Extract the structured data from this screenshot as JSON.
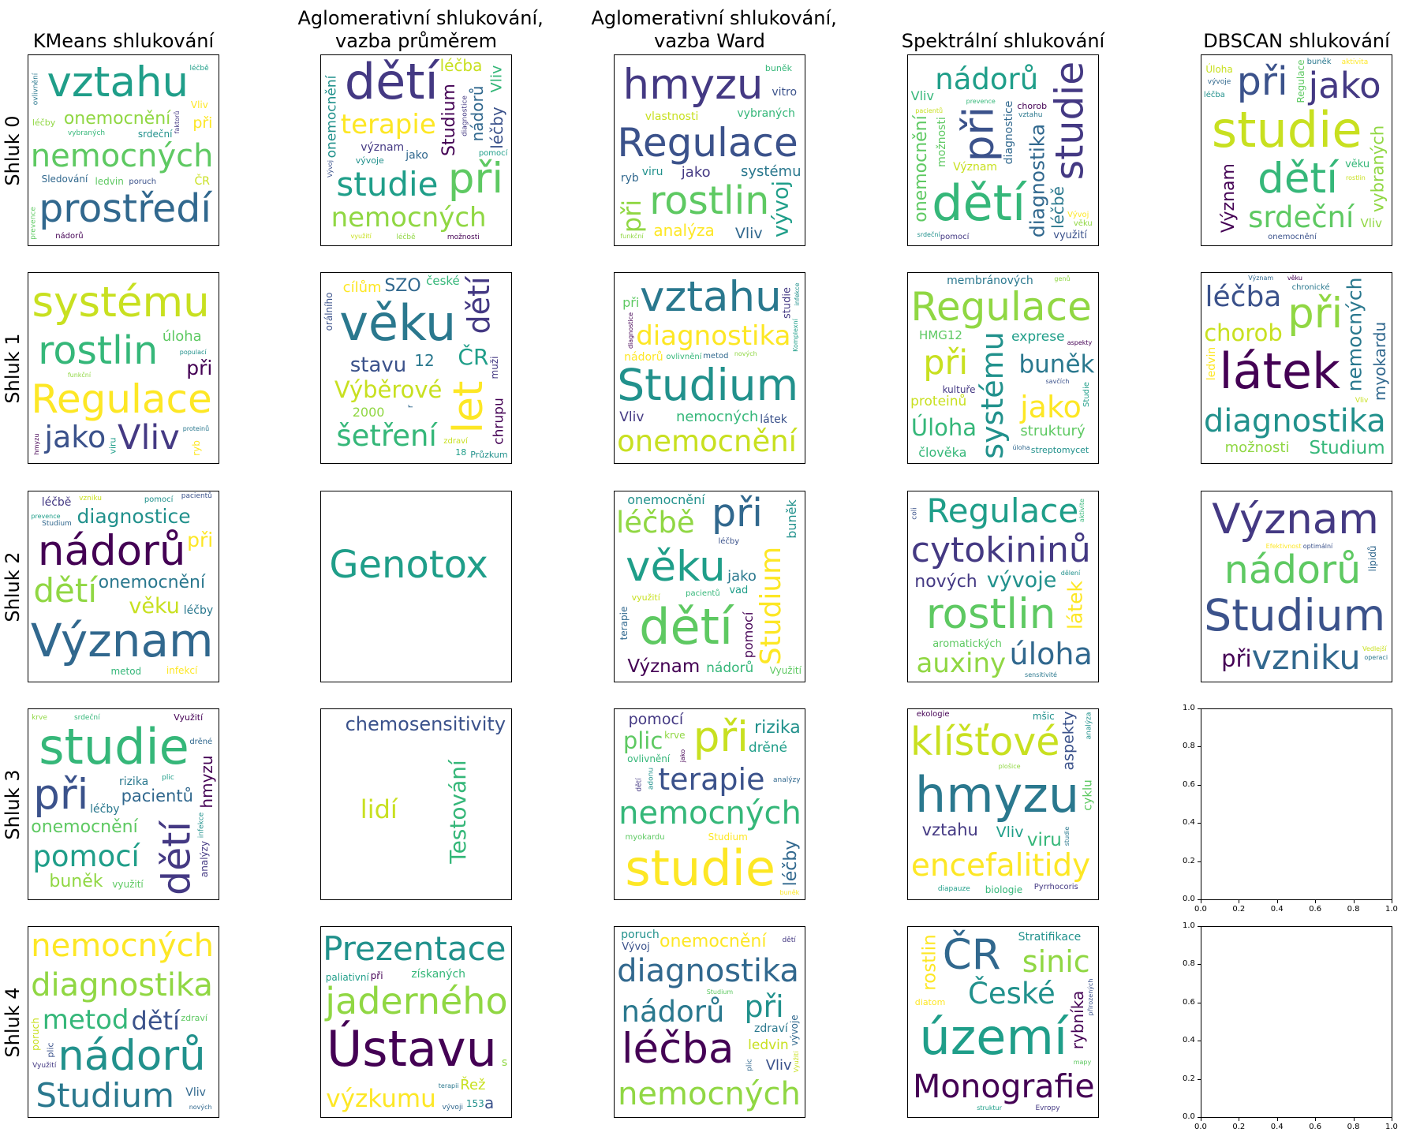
{
  "columns": [
    {
      "title": "KMeans shlukování"
    },
    {
      "title": "Aglomerativní shlukování,\nvazba průměrem"
    },
    {
      "title": "Aglomerativní shlukování,\nvazba Ward"
    },
    {
      "title": "Spektrální shlukování"
    },
    {
      "title": "DBSCAN shlukování"
    }
  ],
  "rows": [
    {
      "label": "Shluk 0"
    },
    {
      "label": "Shluk 1"
    },
    {
      "label": "Shluk 2"
    },
    {
      "label": "Shluk 3"
    },
    {
      "label": "Shluk 4"
    }
  ],
  "empty_axis_ticks": [
    "0.0",
    "0.2",
    "0.4",
    "0.6",
    "0.8",
    "1.0"
  ],
  "palette": [
    "#440154",
    "#3b528b",
    "#21918c",
    "#5ec962",
    "#fde725",
    "#31688e",
    "#35b779",
    "#90d743",
    "#443983",
    "#2a788e",
    "#1f9e89",
    "#c8e020"
  ],
  "panels": [
    [
      {
        "words": [
          "nemocných",
          "vztahu",
          "prostředí",
          "Studium",
          "onemocnění",
          "studie",
          "dětí",
          "při",
          "terapie",
          "léčba",
          "využití",
          "význam",
          "ledvin",
          "diagnostika",
          "Sledování",
          "nádorů",
          "léčby",
          "srdeční",
          "ovlivnění",
          "Vliv",
          "ČR",
          "vybraných",
          "poruch",
          "faktorů",
          "prevence",
          "léčbě"
        ]
      },
      {
        "words": [
          "dětí",
          "při",
          "studie",
          "nádorů",
          "Studium",
          "nemocných",
          "onemocnění",
          "diagnostika",
          "terapie",
          "léčba",
          "Vliv",
          "léčby",
          "význam",
          "vybraných",
          "pomocí",
          "jako",
          "možnosti",
          "léčbě",
          "vývoje",
          "vztahu",
          "ovlivnění",
          "využití",
          "prevence",
          "Vývoj",
          "diagnostice"
        ]
      },
      {
        "words": [
          "Regulace",
          "hmyzu",
          "rostlin",
          "vývoj",
          "Vliv",
          "úloha",
          "při",
          "aspekty",
          "systému",
          "analýza",
          "vlastnosti",
          "vybraných",
          "vitro",
          "jako",
          "exprese",
          "Úloha",
          "ryb",
          "struktury",
          "funkční",
          "viru",
          "proteinů",
          "Charakterizace",
          "Molekulární",
          "buněk",
          "populací"
        ]
      },
      {
        "words": [
          "dětí",
          "při",
          "studie",
          "onemocnění",
          "nádorů",
          "diagnostika",
          "terapie",
          "nemocných",
          "Studium",
          "léčbě",
          "léčba",
          "Význam",
          "Vliv",
          "využití",
          "pomocí",
          "možnosti",
          "vybraných",
          "diagnostice",
          "chorob",
          "věku",
          "srdeční",
          "vztahu",
          "Vývoj",
          "pacientů",
          "prevence"
        ]
      },
      {
        "words": [
          "studie",
          "dětí",
          "při",
          "jako",
          "srdeční",
          "terapie",
          "nemocných",
          "Význam",
          "vybraných",
          "využití",
          "pomocí",
          "hmyzu",
          "Úloha",
          "věku",
          "onemocnění",
          "analýza",
          "Regulace",
          "Studium",
          "vývoje",
          "pacientů",
          "Vliv",
          "léčba",
          "buněk",
          "aktivita",
          "rostlin"
        ]
      }
    ],
    [
      {
        "words": [
          "Regulace",
          "systému",
          "rostlin",
          "jako",
          "Vliv",
          "úloha",
          "buněk",
          "vývoj",
          "při",
          "Úloha",
          "vývoje",
          "analýza",
          "ryb",
          "exprese",
          "struktury",
          "Molekulární",
          "vybraných",
          "aspekty",
          "viru",
          "Charakterizace",
          "hmyzu",
          "funkční",
          "populací",
          "proteinů",
          "Studium"
        ]
      },
      {
        "words": [
          "věku",
          "let",
          "Výběrové",
          "šetření",
          "stavu",
          "dětí",
          "zřetelem",
          "ČR",
          "SZO",
          "chrupu",
          "2000",
          "Průzkum",
          "12",
          "cílům",
          "zdraví",
          "české",
          "orálního",
          "muži",
          "republice",
          "18",
          "r"
        ]
      },
      {
        "words": [
          "Studium",
          "vztahu",
          "diagnostika",
          "onemocnění",
          "nemocných",
          "prostředí",
          "Vliv",
          "při",
          "léčba",
          "využití",
          "terapie",
          "význam",
          "chorob",
          "léčby",
          "nádorů",
          "Sledování",
          "ovlivnění",
          "látek",
          "studie",
          "monitorování",
          "Komplexní",
          "metod",
          "diagnostice",
          "nových",
          "infekce"
        ]
      },
      {
        "words": [
          "Regulace",
          "systému",
          "buněk",
          "jako",
          "při",
          "Úloha",
          "Molekulární",
          "aktivita",
          "strukturý",
          "exprese",
          "vývoj",
          "ovlivnění",
          "vlastnosti",
          "streptomycet",
          "membránových",
          "Charakterizace",
          "proteinů",
          "člověka",
          "savčích",
          "kultuře",
          "HMG12",
          "Studie",
          "úloha",
          "aspekty",
          "genů"
        ]
      },
      {
        "words": [
          "látek",
          "při",
          "diagnostika",
          "nemocných",
          "terapie",
          "chorob",
          "Studium",
          "léčba",
          "Vývoj",
          "poruch",
          "diagnostiku",
          "myokardu",
          "sledování",
          "možnosti",
          "metod",
          "chronické",
          "ledvin",
          "Vliv",
          "prostředí",
          "onemocnění",
          "ovlivnění",
          "metabolické",
          "lidské",
          "Význam",
          "věku"
        ]
      }
    ],
    [
      {
        "words": [
          "Význam",
          "nádorů",
          "dětí",
          "diagnostice",
          "onemocnění",
          "při",
          "věku",
          "Využití",
          "terapie",
          "léčbě",
          "vybraných",
          "nemocných",
          "studie",
          "klinické",
          "ovlivnění",
          "pomocí",
          "léčby",
          "infekcí",
          "vzniku",
          "metod",
          "pacientů",
          "karcinomu",
          "zdraví",
          "prevence",
          "Studium"
        ]
      },
      {
        "words": [
          "Genotox"
        ]
      },
      {
        "words": [
          "dětí",
          "věku",
          "při",
          "Význam",
          "léčbě",
          "onemocnění",
          "diagnostice",
          "Studium",
          "studie",
          "nádorů",
          "vývoje",
          "srdeční",
          "Využití",
          "vad",
          "terapie",
          "pomocí",
          "vrozených",
          "buněk",
          "jako",
          "karcinomu",
          "využití",
          "pacientů",
          "léčby",
          "vrozenou",
          "vadou"
        ]
      },
      {
        "words": [
          "cytokininů",
          "rostlin",
          "Regulace",
          "úloha",
          "změn",
          "auxiny",
          "vývoje",
          "charakterizace",
          "látek",
          "Biochemie",
          "identifikace",
          "isolace",
          "nových",
          "aromatických",
          "mutační",
          "Podstata",
          "regulaci",
          "buněčného",
          "dělení",
          "sensitivité",
          "reparační",
          "transgenních",
          "aktivite",
          "coli",
          "gen"
        ]
      },
      {
        "words": [
          "Studium",
          "Význam",
          "nádorů",
          "diagnostice",
          "vzniku",
          "při",
          "ovlivnění",
          "onemocnění",
          "mechanismy",
          "osteoporózy",
          "radikálních",
          "metabolismus",
          "vybraných",
          "Parametry",
          "účinky",
          "ovaria",
          "lipidů",
          "léčbě",
          "chronické",
          "maligních",
          "operaci",
          "Efektivnost",
          "Vedlejší",
          "Komplexní",
          "optimální"
        ]
      }
    ],
    [
      {
        "words": [
          "studie",
          "při",
          "dětí",
          "onemocnění",
          "pomocí",
          "pacientů",
          "hmyzu",
          "buněk",
          "možnosti",
          "léčby",
          "kostní",
          "nemocných",
          "terapie",
          "jako",
          "analýzy",
          "využití",
          "plic",
          "drěné",
          "Využití",
          "krve",
          "infekce",
          "rizika",
          "Studium",
          "analýza",
          "srdeční"
        ]
      },
      {
        "words": [
          "lidí",
          "Testování",
          "chemosensitivity"
        ]
      },
      {
        "words": [
          "studie",
          "při",
          "nemocných",
          "terapie",
          "pomocí",
          "plic",
          "drěné",
          "léčby",
          "pacientů",
          "možnosti",
          "rizika",
          "hodnocení",
          "Studium",
          "karcinomu",
          "ovlivnění",
          "kostní",
          "dětí",
          "myokardu",
          "Využití",
          "analýzy",
          "jako",
          "krve",
          "adonu",
          "diagnostice",
          "buněk"
        ]
      },
      {
        "words": [
          "hmyzu",
          "encefalitidy",
          "klíšťové",
          "viru",
          "aspekty",
          "vztahu",
          "imunitní",
          "Vliv",
          "Regulace",
          "ryb",
          "infekce",
          "mšic",
          "studia",
          "vitro",
          "vlastnosti",
          "biologie",
          "vývojová",
          "Pyrrhocoris",
          "cyklu",
          "diapauze",
          "patogenita",
          "ekologie",
          "plošice",
          "analýza",
          "studie"
        ]
      },
      {
        "axes": true
      }
    ],
    [
      {
        "words": [
          "diagnostika",
          "nádorů",
          "Studium",
          "nemocných",
          "léčba",
          "metod",
          "dětí",
          "terapie",
          "onemocnění",
          "chorob",
          "Vliv",
          "látek",
          "Vývoj",
          "ledvin",
          "Diagnostika",
          "prevence",
          "poruch",
          "myokardu",
          "plic",
          "Využití",
          "zdraví",
          "metabolismu",
          "nových",
          "transplantace",
          "věku"
        ]
      },
      {
        "words": [
          "Ústavu",
          "jaderného",
          "Prezentace",
          "výsledků",
          "výzkumu",
          "Řež",
          "získaných",
          "a",
          "přípravkuu",
          "SmEDTMP",
          "paliativní",
          "vývoji",
          "při",
          "s",
          "153",
          "terapii"
        ]
      },
      {
        "words": [
          "diagnostika",
          "léčba",
          "nemocných",
          "při",
          "nádorů",
          "onemocnění",
          "ledvin",
          "sledování",
          "Vliv",
          "ovlivnění",
          "studie",
          "Význam",
          "vývoje",
          "možnosti",
          "metabolické",
          "poruch",
          "zdraví",
          "terapie",
          "Využití",
          "věku",
          "Vývoj",
          "dětí",
          "Studium",
          "vybraných",
          "plic"
        ]
      },
      {
        "words": [
          "území",
          "ČR",
          "Monografie",
          "sinic",
          "České",
          "republiky",
          "rostlin",
          "druhové",
          "Síťové",
          "Zhodnocení",
          "rozšíření",
          "epifytických",
          "mapování",
          "lišejníků",
          "rybníka",
          "aktuálního",
          "Stratifikace",
          "Čechách",
          "diatom",
          "sedimentech",
          "vegetačních",
          "přirozených",
          "Evropy",
          "mapy",
          "struktur"
        ]
      },
      {
        "axes": true
      }
    ]
  ]
}
